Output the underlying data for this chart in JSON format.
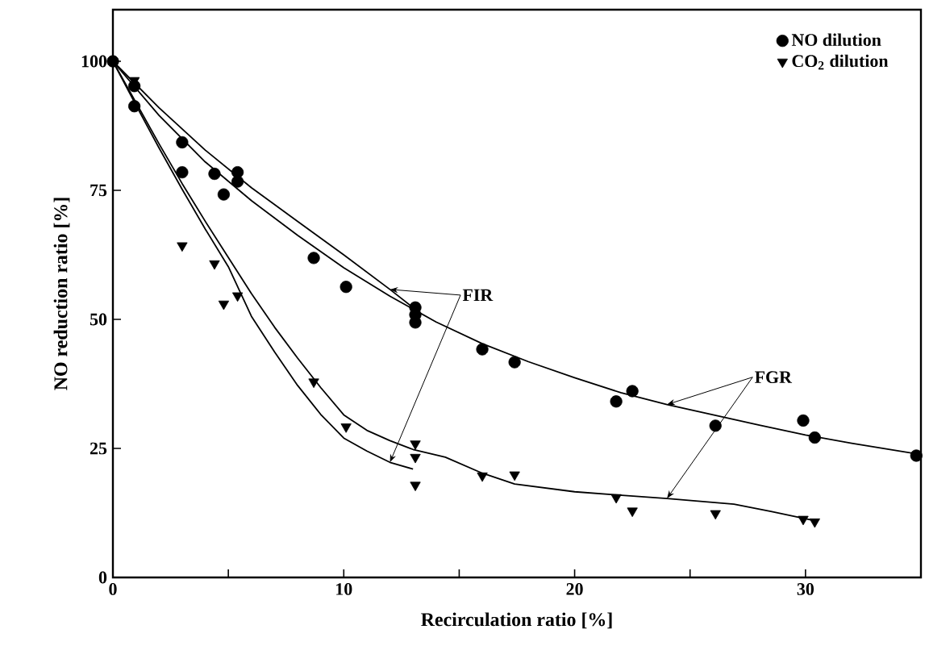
{
  "chart_data": {
    "type": "scatter",
    "xlabel": "Recirculation ratio [%]",
    "ylabel": "NO reduction ratio [%]",
    "xlim": [
      0,
      35
    ],
    "ylim": [
      0,
      110
    ],
    "xticks": [
      0,
      {
        "value": 5,
        "label": null
      },
      10,
      {
        "value": 15,
        "label": null
      },
      20,
      {
        "value": 25,
        "label": null
      },
      30
    ],
    "yticks": [
      0,
      25,
      50,
      75,
      100
    ],
    "grid": false,
    "legend": "top right",
    "series": [
      {
        "name": "NO dilution",
        "color": "#000000",
        "marker": "circle",
        "x": [
          0,
          0.93,
          0.93,
          3.0,
          3.0,
          4.4,
          4.8,
          5.4,
          5.4,
          8.7,
          10.1,
          13.1,
          13.1,
          13.1,
          16.0,
          17.4,
          21.8,
          22.5,
          26.1,
          29.9,
          30.4,
          34.8
        ],
        "values": [
          100,
          95.2,
          91.3,
          84.3,
          78.5,
          78.2,
          74.2,
          78.5,
          76.7,
          61.9,
          56.3,
          52.3,
          50.9,
          49.4,
          44.2,
          41.7,
          34.1,
          36.1,
          29.4,
          30.4,
          27.1,
          23.6
        ]
      },
      {
        "name": "CO$_{2}$ dilution",
        "color": "#000000",
        "marker": "triangle",
        "x": [
          0.93,
          3.0,
          4.4,
          4.8,
          5.4,
          8.7,
          10.1,
          13.1,
          13.1,
          13.1,
          16.0,
          17.4,
          21.8,
          22.5,
          26.1,
          29.9,
          30.4
        ],
        "values": [
          96.3,
          64.3,
          60.8,
          53.0,
          54.6,
          37.9,
          29.2,
          25.9,
          23.3,
          17.9,
          19.7,
          19.9,
          15.5,
          12.9,
          12.4,
          11.3,
          10.8
        ]
      },
      {
        "type": "line",
        "color": "#000000",
        "marker": "none",
        "x": [
          0,
          2,
          4,
          6,
          8,
          10,
          12,
          13
        ],
        "values": [
          100,
          91,
          82.8,
          75.5,
          69,
          62.5,
          55.8,
          52.3
        ]
      },
      {
        "type": "line",
        "color": "#000000",
        "marker": "none",
        "x": [
          0,
          1,
          2,
          3,
          4,
          5,
          6,
          7,
          8,
          9,
          10,
          11,
          12,
          13
        ],
        "values": [
          100,
          91.5,
          83.2,
          75.2,
          67.5,
          60.2,
          50.6,
          43.7,
          37.2,
          31.6,
          27,
          24.5,
          22.3,
          21
        ]
      },
      {
        "type": "line",
        "color": "#000000",
        "marker": "none",
        "x": [
          0,
          2,
          4,
          6,
          8,
          10,
          12,
          14,
          16,
          18,
          20,
          22,
          24,
          26,
          28,
          30,
          32,
          35
        ],
        "values": [
          100,
          89.5,
          80.5,
          73,
          66.3,
          60,
          54.5,
          49.5,
          45.3,
          41.8,
          38.7,
          35.8,
          33.5,
          31.5,
          29.5,
          27.6,
          26,
          23.8
        ]
      },
      {
        "type": "line",
        "color": "#000000",
        "marker": "none",
        "x": [
          0,
          1,
          2,
          3,
          4,
          5,
          6,
          7,
          8,
          9,
          10,
          11,
          12,
          13,
          14.4,
          16,
          17.4,
          20,
          21.8,
          24,
          26.9,
          28.5,
          30.4
        ],
        "values": [
          100,
          92,
          84,
          76.3,
          69,
          62,
          55,
          48.5,
          42.5,
          36.8,
          31.5,
          28.5,
          26.5,
          24.8,
          23.3,
          20.2,
          18.1,
          16.6,
          16,
          15.3,
          14.2,
          12.8,
          11
        ]
      }
    ],
    "annotations": [
      {
        "text": "FIR",
        "x": 12,
        "y": 22.3
      },
      {
        "text": "FGR",
        "x": 24,
        "y": 33.5
      }
    ]
  }
}
